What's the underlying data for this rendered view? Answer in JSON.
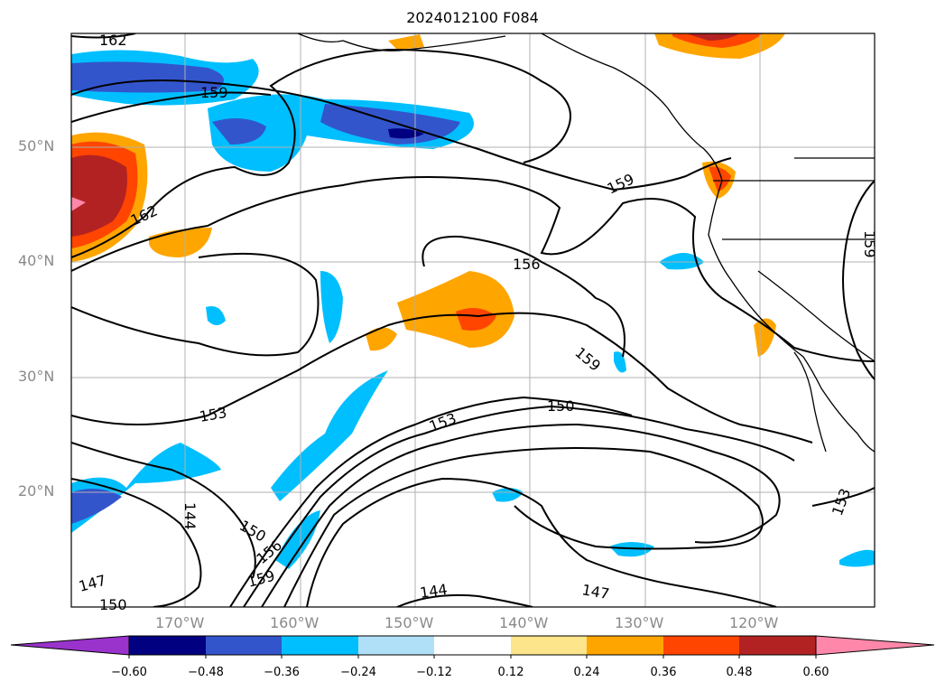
{
  "title": "2024012100 F084",
  "axes": {
    "lat_labels": [
      "50°N",
      "40°N",
      "30°N",
      "20°N"
    ],
    "lon_labels": [
      "170°W",
      "160°W",
      "150°W",
      "140°W",
      "130°W",
      "120°W"
    ]
  },
  "contour_labels": [
    "162",
    "159",
    "162",
    "159",
    "156",
    "159",
    "153",
    "153",
    "150",
    "144",
    "150",
    "156",
    "159",
    "147",
    "150",
    "144",
    "147",
    "153",
    "159"
  ],
  "colorbar": {
    "tick_labels": [
      "−0.60",
      "−0.48",
      "−0.36",
      "−0.24",
      "−0.12",
      "0.12",
      "0.24",
      "0.36",
      "0.48",
      "0.60"
    ],
    "colors": [
      "#9933cc",
      "#000080",
      "#3355cc",
      "#00bfff",
      "#b0e0f7",
      "#ffffff",
      "#fce58a",
      "#ffa500",
      "#ff4500",
      "#b22222",
      "#ff88aa"
    ]
  }
}
